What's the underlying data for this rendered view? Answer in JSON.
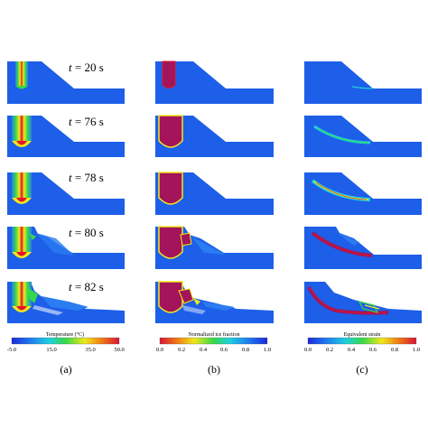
{
  "time_labels": [
    "t = 20 s",
    "t = 76 s",
    "t = 78 s",
    "t = 80 s",
    "t = 82 s"
  ],
  "colorbars": [
    {
      "title": "Temperature (°C)",
      "ticks": [
        "-5.0",
        "15.0",
        "35.0",
        "50.0"
      ],
      "colormap": "rainbow"
    },
    {
      "title": "Normalized ice fraction",
      "ticks": [
        "0.0",
        "0.2",
        "0.4",
        "0.6",
        "0.8",
        "1.0"
      ],
      "colormap": "rainbow-reversed"
    },
    {
      "title": "Equivalent strain",
      "ticks": [
        "0.0",
        "0.2",
        "0.4",
        "0.6",
        "0.8",
        "1.0"
      ],
      "colormap": "rainbow"
    }
  ],
  "panel_labels": [
    "(a)",
    "(b)",
    "(c)"
  ],
  "colors": {
    "field_blue": "#1d5fe8",
    "field_blue_light": "#2a7cf0",
    "red": "#e3142a",
    "magenta": "#a3145a",
    "yellow": "#f2e21a",
    "green": "#2ed44a",
    "cyan": "#18c8e8"
  }
}
